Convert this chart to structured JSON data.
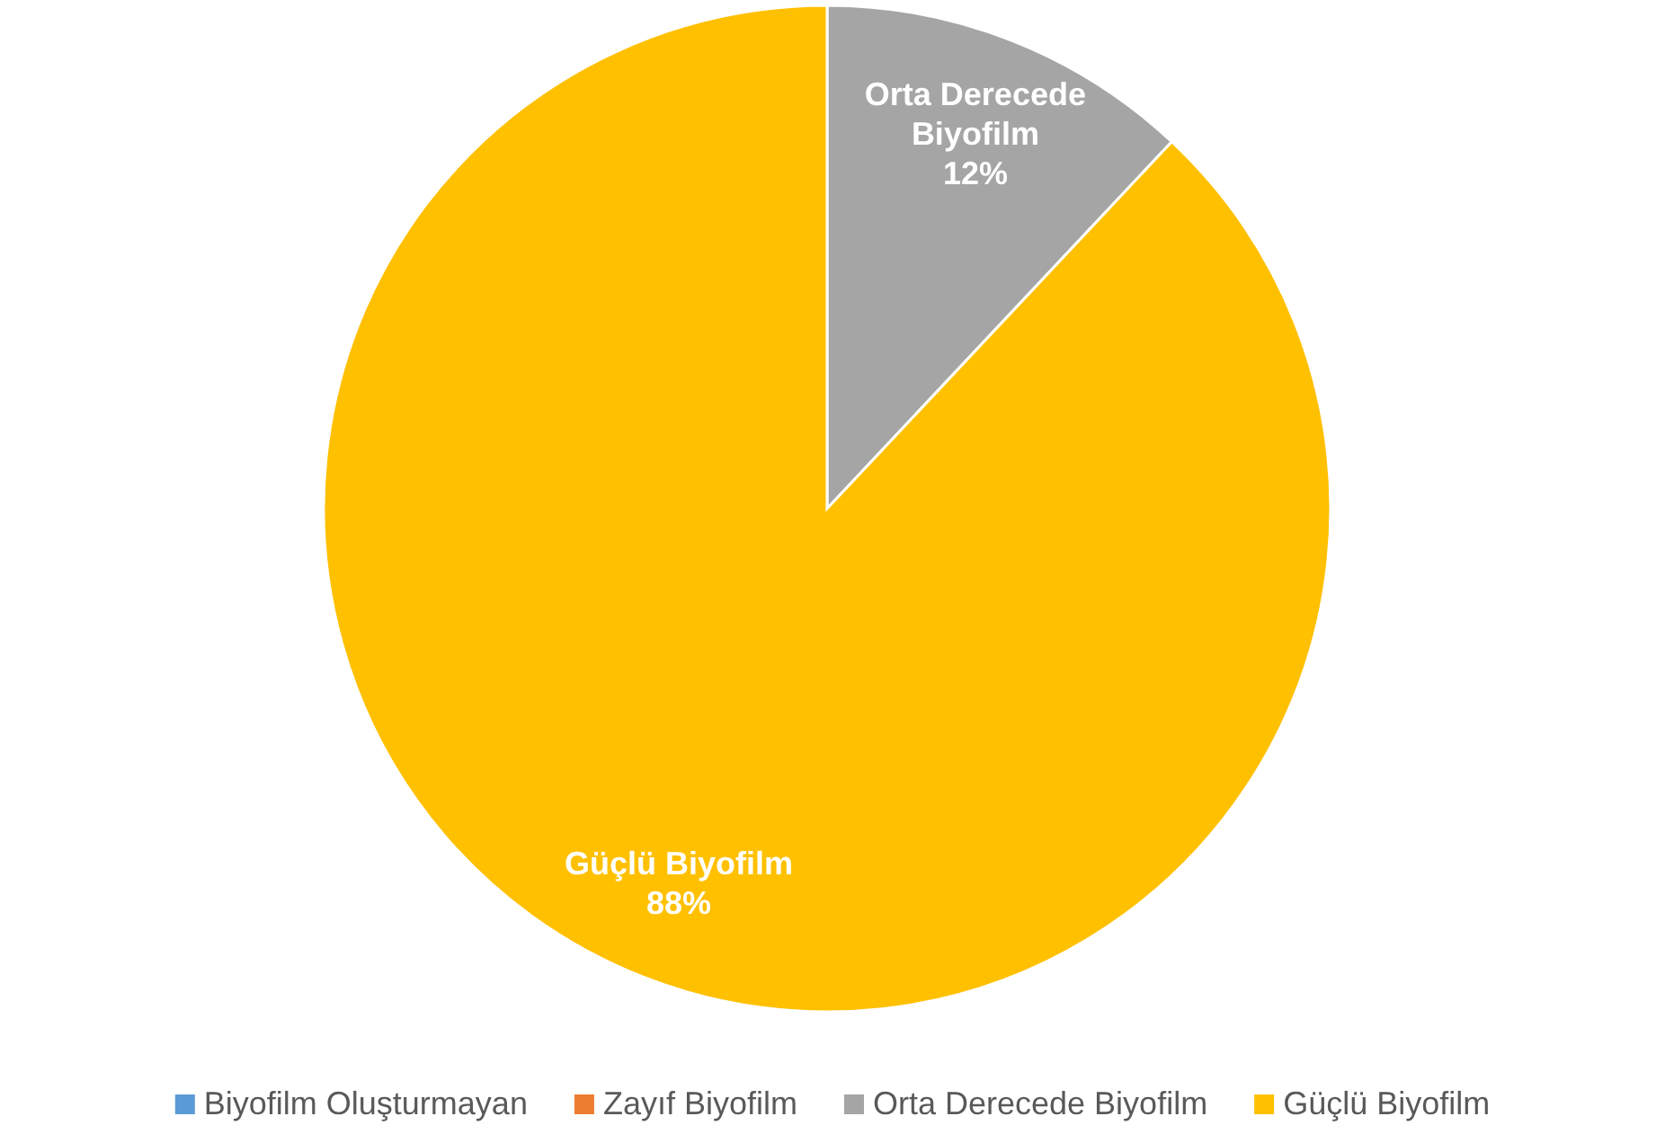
{
  "chart_data": {
    "type": "pie",
    "categories": [
      "Biyofilm Oluşturmayan",
      "Zayıf Biyofilm",
      "Orta Derecede Biyofilm",
      "Güçlü Biyofilm"
    ],
    "values": [
      0,
      0,
      12,
      88
    ],
    "value_labels": [
      null,
      null,
      "12%",
      "88%"
    ],
    "colors": [
      "#5b9bd5",
      "#ed7d31",
      "#a5a5a5",
      "#ffc000"
    ],
    "legend": "bottom"
  }
}
